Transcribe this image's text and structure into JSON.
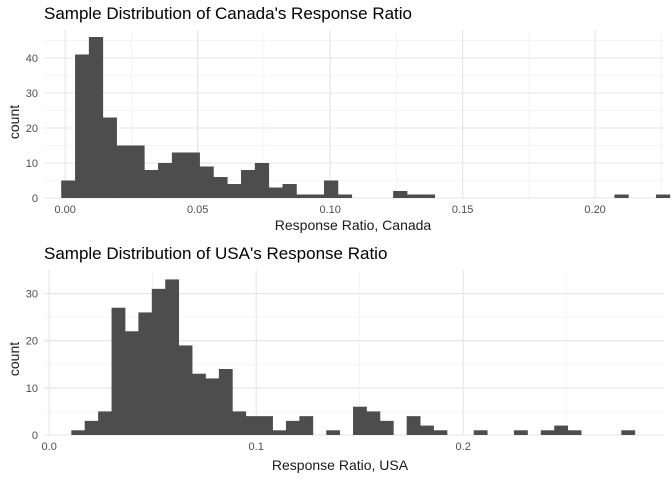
{
  "chart_data": [
    {
      "type": "bar",
      "title": "Sample Distribution of Canada's Response Ratio",
      "xlabel": "Response Ratio, Canada",
      "ylabel": "count",
      "xlim": [
        -0.008,
        0.226
      ],
      "ylim": [
        0,
        48
      ],
      "x_ticks": [
        0.0,
        0.05,
        0.1,
        0.15,
        0.2
      ],
      "x_tick_labels": [
        "0.00",
        "0.05",
        "0.10",
        "0.15",
        "0.20"
      ],
      "y_ticks": [
        0,
        10,
        20,
        30,
        40
      ],
      "y_tick_labels": [
        "0",
        "10",
        "20",
        "30",
        "40"
      ],
      "bin_start": -0.0015,
      "bin_width": 0.00522,
      "values": [
        5,
        41,
        46,
        23,
        15,
        15,
        8,
        10,
        13,
        13,
        9,
        6,
        4,
        8,
        10,
        3,
        4,
        1,
        1,
        5,
        1,
        0,
        0,
        0,
        2,
        1,
        1,
        0,
        0,
        0,
        0,
        0,
        0,
        0,
        0,
        0,
        0,
        0,
        0,
        0,
        1,
        0,
        0,
        1
      ],
      "grid": true,
      "bar_color": "#4d4d4d"
    },
    {
      "type": "bar",
      "title": "Sample Distribution of USA's Response Ratio",
      "xlabel": "Response Ratio, USA",
      "ylabel": "count",
      "xlim": [
        -0.0025,
        0.297
      ],
      "ylim": [
        0,
        35
      ],
      "x_ticks": [
        0.0,
        0.1,
        0.2
      ],
      "x_tick_labels": [
        "0.0",
        "0.1",
        "0.2"
      ],
      "y_ticks": [
        0,
        10,
        20,
        30
      ],
      "y_tick_labels": [
        "0",
        "10",
        "20",
        "30"
      ],
      "bin_start": 0.0107,
      "bin_width": 0.00648,
      "values": [
        1,
        3,
        5,
        27,
        22,
        26,
        31,
        33,
        19,
        13,
        12,
        14,
        5,
        4,
        4,
        1,
        3,
        4,
        0,
        1,
        0,
        6,
        5,
        3,
        0,
        4,
        2,
        1,
        0,
        0,
        1,
        0,
        0,
        1,
        0,
        1,
        2,
        1,
        0,
        0,
        0,
        1
      ],
      "grid": true,
      "bar_color": "#4d4d4d"
    }
  ]
}
